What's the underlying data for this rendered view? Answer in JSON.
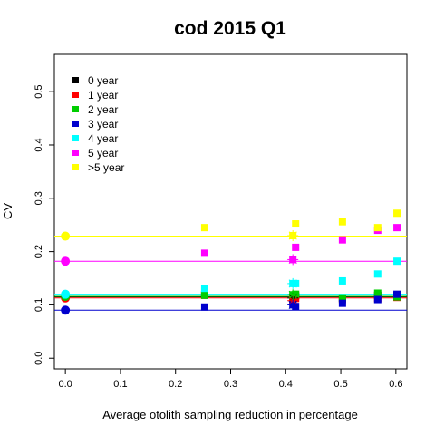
{
  "chart_data": {
    "type": "scatter",
    "title": "cod 2015 Q1",
    "xlabel": "Average otolith sampling reduction in percentage",
    "ylabel": "CV",
    "xlim": [
      -0.02,
      0.62
    ],
    "ylim": [
      -0.02,
      0.57
    ],
    "xticks": [
      "0.0",
      "0.1",
      "0.2",
      "0.3",
      "0.4",
      "0.5",
      "0.6"
    ],
    "yticks": [
      "0.0",
      "0.1",
      "0.2",
      "0.3",
      "0.4",
      "0.5"
    ],
    "grid": false,
    "legend_position": "top-left",
    "x": [
      0.253,
      0.413,
      0.418,
      0.503,
      0.567,
      0.602
    ],
    "star_x": 0.413,
    "series": [
      {
        "name": "0 year",
        "color": "#000000",
        "baseline": 0.115,
        "values": [
          0.12,
          0.113,
          0.117,
          0.112,
          0.118,
          0.118
        ],
        "star": 0.113
      },
      {
        "name": "1 year",
        "color": "#ff0000",
        "baseline": 0.113,
        "values": [
          0.118,
          0.108,
          0.112,
          0.11,
          0.112,
          0.114
        ],
        "star": 0.108
      },
      {
        "name": "2 year",
        "color": "#00cd00",
        "baseline": 0.116,
        "values": [
          0.118,
          0.119,
          0.12,
          0.113,
          0.122,
          0.115
        ],
        "star": 0.119
      },
      {
        "name": "3 year",
        "color": "#0000cd",
        "baseline": 0.09,
        "values": [
          0.096,
          0.1,
          0.097,
          0.103,
          0.11,
          0.12
        ],
        "star": 0.1
      },
      {
        "name": "4 year",
        "color": "#00ffff",
        "baseline": 0.12,
        "values": [
          0.131,
          0.14,
          0.14,
          0.145,
          0.158,
          0.182
        ],
        "star": 0.14
      },
      {
        "name": "5 year",
        "color": "#ff00ff",
        "baseline": 0.182,
        "values": [
          0.197,
          0.185,
          0.208,
          0.222,
          0.24,
          0.245
        ],
        "star": 0.185
      },
      {
        "name": ">5 year",
        "color": "#ffff00",
        "baseline": 0.229,
        "values": [
          0.245,
          0.23,
          0.252,
          0.256,
          0.245,
          0.272
        ],
        "star": 0.23
      }
    ]
  }
}
